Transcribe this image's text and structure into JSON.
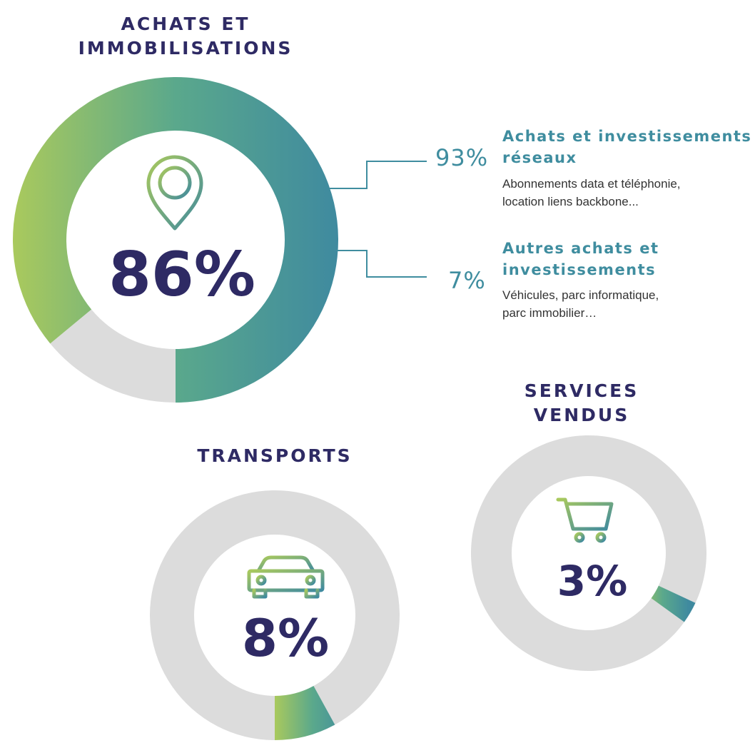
{
  "colors": {
    "gradient_start": "#a9c95d",
    "gradient_mid": "#5aa88c",
    "gradient_end": "#3f8a9f",
    "remainder": "#dcdcdc",
    "title": "#2e2a64",
    "sub_accent": "#3f8d9f",
    "desc_text": "#333333"
  },
  "chart_data": [
    {
      "type": "pie",
      "title_lines": [
        "ACHATS ET",
        "IMMOBILISATIONS"
      ],
      "value_label": "86%",
      "value": 86,
      "icon": "location-pin-icon",
      "breakdown": [
        {
          "pct": "93%",
          "value": 93,
          "title_lines": [
            "Achats et investissements",
            "réseaux"
          ],
          "desc_lines": [
            "Abonnements data et téléphonie,",
            "location liens backbone..."
          ]
        },
        {
          "pct": "7%",
          "value": 7,
          "title_lines": [
            "Autres achats et",
            "investissements"
          ],
          "desc_lines": [
            "Véhicules, parc informatique,",
            "parc immobilier…"
          ]
        }
      ]
    },
    {
      "type": "pie",
      "title_lines": [
        "TRANSPORTS"
      ],
      "value_label": "8%",
      "value": 8,
      "icon": "car-icon"
    },
    {
      "type": "pie",
      "title_lines": [
        "SERVICES",
        "VENDUS"
      ],
      "value_label": "3%",
      "value": 3,
      "icon": "shopping-cart-icon"
    }
  ]
}
